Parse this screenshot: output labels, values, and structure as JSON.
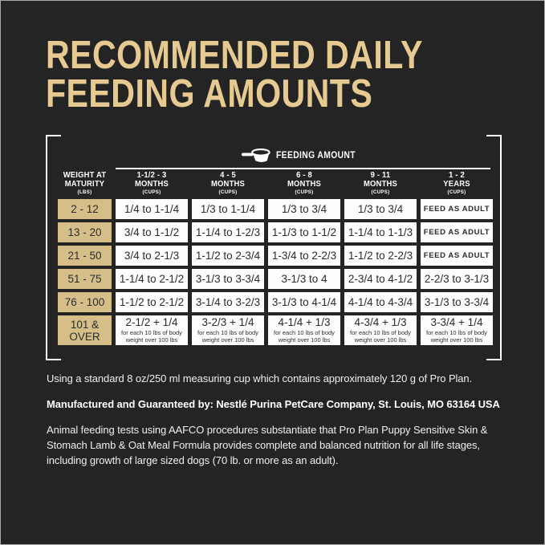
{
  "page": {
    "title_line1": "RECOMMENDED DAILY",
    "title_line2": "FEEDING AMOUNTS"
  },
  "colors": {
    "bg": "#242424",
    "gold": "#e6ca92",
    "tan": "#d6be89",
    "cell": "#fdfdfd",
    "ink": "#2b2b2b",
    "note": "#efefef"
  },
  "table": {
    "feeding_amount_label": "FEEDING AMOUNT",
    "cup_icon": "measuring-cup-icon",
    "row_header": {
      "line1": "WEIGHT AT",
      "line2": "MATURITY",
      "unit": "(LBS)"
    },
    "columns": [
      {
        "line1": "1-1/2 - 3",
        "line2": "MONTHS",
        "unit": "(CUPS)"
      },
      {
        "line1": "4 - 5",
        "line2": "MONTHS",
        "unit": "(CUPS)"
      },
      {
        "line1": "6 - 8",
        "line2": "MONTHS",
        "unit": "(CUPS)"
      },
      {
        "line1": "9 - 11",
        "line2": "MONTHS",
        "unit": "(CUPS)"
      },
      {
        "line1": "1 - 2",
        "line2": "YEARS",
        "unit": "(CUPS)"
      }
    ],
    "feed_as_adult_label": "FEED AS ADULT",
    "rows": [
      {
        "weight": "2 - 12",
        "values": [
          "1/4 to 1-1/4",
          "1/3 to 1-1/4",
          "1/3 to 3/4",
          "1/3 to 3/4",
          "FEED AS ADULT"
        ]
      },
      {
        "weight": "13 - 20",
        "values": [
          "3/4 to 1-1/2",
          "1-1/4 to 1-2/3",
          "1-1/3 to 1-1/2",
          "1-1/4 to 1-1/3",
          "FEED AS ADULT"
        ]
      },
      {
        "weight": "21 - 50",
        "values": [
          "3/4 to 2-1/3",
          "1-1/2 to 2-3/4",
          "1-3/4 to 2-2/3",
          "1-1/2 to 2-2/3",
          "FEED AS ADULT"
        ]
      },
      {
        "weight": "51 - 75",
        "values": [
          "1-1/4 to 2-1/2",
          "3-1/3 to 3-3/4",
          "3-1/3 to 4",
          "2-3/4 to 4-1/2",
          "2-2/3 to 3-1/3"
        ]
      },
      {
        "weight": "76 - 100",
        "values": [
          "1-1/2 to 2-1/2",
          "3-1/4 to 3-2/3",
          "3-1/3 to 4-1/4",
          "4-1/4 to 4-3/4",
          "3-1/3 to 3-3/4"
        ]
      },
      {
        "weight": "101 & OVER",
        "values": [
          "2-1/2 + 1/4",
          "3-2/3 + 1/4",
          "4-1/4 + 1/3",
          "4-3/4 + 1/3",
          "3-3/4 + 1/4"
        ],
        "subnote": "for each 10 lbs of body weight over 100 lbs"
      }
    ]
  },
  "notes": {
    "cup": "Using a standard 8 oz/250 ml measuring cup which contains approximately 120 g of Pro Plan.",
    "manufacturer": "Manufactured and Guaranteed by: Nestlé Purina PetCare Company, St. Louis, MO 63164 USA",
    "aafco": "Animal feeding tests using AAFCO procedures substantiate that Pro Plan Puppy Sensitive Skin & Stomach Lamb & Oat Meal Formula provides complete and balanced nutrition for all life stages, including growth of large sized dogs (70 lb. or more as an adult)."
  }
}
